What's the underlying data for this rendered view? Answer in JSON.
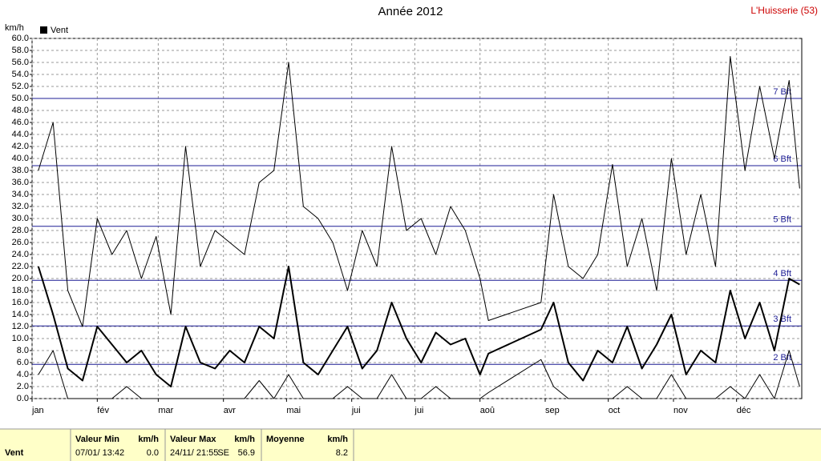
{
  "chart_data": {
    "type": "line",
    "title": "Année 2012",
    "station": "L'Huisserie (53)",
    "y_label": "km/h",
    "legend": "Vent",
    "grid": true,
    "xlim": [
      0,
      366
    ],
    "xticks": [
      {
        "value": 0,
        "label": "jan"
      },
      {
        "value": 31,
        "label": "fév"
      },
      {
        "value": 60,
        "label": "mar"
      },
      {
        "value": 91,
        "label": "avr"
      },
      {
        "value": 121,
        "label": "mai"
      },
      {
        "value": 152,
        "label": "jui"
      },
      {
        "value": 182,
        "label": "jui"
      },
      {
        "value": 213,
        "label": "aoû"
      },
      {
        "value": 244,
        "label": "sep"
      },
      {
        "value": 274,
        "label": "oct"
      },
      {
        "value": 305,
        "label": "nov"
      },
      {
        "value": 335,
        "label": "déc"
      }
    ],
    "ylim": [
      0,
      60
    ],
    "yticks": [
      {
        "value": 0,
        "label": "0.0"
      },
      {
        "value": 2,
        "label": "2.0"
      },
      {
        "value": 4,
        "label": "4.0"
      },
      {
        "value": 6,
        "label": "6.0"
      },
      {
        "value": 8,
        "label": "8.0"
      },
      {
        "value": 10,
        "label": "10.0"
      },
      {
        "value": 12,
        "label": "12.0"
      },
      {
        "value": 14,
        "label": "14.0"
      },
      {
        "value": 16,
        "label": "16.0"
      },
      {
        "value": 18,
        "label": "18.0"
      },
      {
        "value": 20,
        "label": "20.0"
      },
      {
        "value": 22,
        "label": "22.0"
      },
      {
        "value": 24,
        "label": "24.0"
      },
      {
        "value": 26,
        "label": "26.0"
      },
      {
        "value": 28,
        "label": "28.0"
      },
      {
        "value": 30,
        "label": "30.0"
      },
      {
        "value": 32,
        "label": "32.0"
      },
      {
        "value": 34,
        "label": "34.0"
      },
      {
        "value": 36,
        "label": "36.0"
      },
      {
        "value": 38,
        "label": "38.0"
      },
      {
        "value": 40,
        "label": "40.0"
      },
      {
        "value": 42,
        "label": "42.0"
      },
      {
        "value": 44,
        "label": "44.0"
      },
      {
        "value": 46,
        "label": "46.0"
      },
      {
        "value": 48,
        "label": "48.0"
      },
      {
        "value": 50,
        "label": "50.0"
      },
      {
        "value": 52,
        "label": "52.0"
      },
      {
        "value": 54,
        "label": "54.0"
      },
      {
        "value": 56,
        "label": "56.0"
      },
      {
        "value": 58,
        "label": "58.0"
      },
      {
        "value": 60,
        "label": "60.0"
      }
    ],
    "annotations": [
      {
        "value": 5.7,
        "label": "2 Bft"
      },
      {
        "value": 12.1,
        "label": "3 Bft"
      },
      {
        "value": 19.7,
        "label": "4 Bft"
      },
      {
        "value": 28.7,
        "label": "5 Bft"
      },
      {
        "value": 38.8,
        "label": "6 Bft"
      },
      {
        "value": 50,
        "label": "7 Bft"
      }
    ],
    "annotation_color": "#1c1c94",
    "x": [
      3,
      10,
      17,
      24,
      31,
      38,
      45,
      52,
      59,
      66,
      73,
      80,
      87,
      94,
      101,
      108,
      115,
      122,
      129,
      136,
      143,
      150,
      157,
      164,
      171,
      178,
      185,
      192,
      199,
      206,
      213,
      217,
      242,
      248,
      255,
      262,
      269,
      276,
      283,
      290,
      297,
      304,
      311,
      318,
      325,
      332,
      339,
      346,
      353,
      360,
      365
    ],
    "series": [
      {
        "color": "#000000",
        "width": 1,
        "values": [
          38,
          46,
          18,
          12,
          30,
          24,
          28,
          20,
          27,
          14,
          42,
          22,
          28,
          26,
          24,
          36,
          38,
          56,
          32,
          30,
          26,
          18,
          28,
          22,
          42,
          28,
          30,
          24,
          32,
          28,
          20,
          13,
          16,
          34,
          22,
          20,
          24,
          39,
          22,
          30,
          18,
          40,
          24,
          34,
          22,
          57,
          38,
          52,
          40,
          53,
          35
        ]
      },
      {
        "name": "Vent",
        "color": "#000000",
        "width": 2,
        "values": [
          22,
          14,
          5,
          3,
          12,
          9,
          6,
          8,
          4,
          2,
          12,
          6,
          5,
          8,
          6,
          12,
          10,
          22,
          6,
          4,
          8,
          12,
          5,
          8,
          16,
          10,
          6,
          11,
          9,
          10,
          4,
          7.5,
          11.5,
          16,
          6,
          3,
          8,
          6,
          12,
          5,
          9,
          14,
          4,
          8,
          6,
          18,
          10,
          16,
          8,
          20,
          19
        ]
      },
      {
        "color": "#000000",
        "width": 1,
        "values": [
          4,
          8,
          0,
          0,
          0,
          0,
          2,
          0,
          0,
          0,
          0,
          0,
          0,
          0,
          0,
          3,
          0,
          4,
          0,
          0,
          0,
          2,
          0,
          0,
          4,
          0,
          0,
          2,
          0,
          0,
          0,
          1,
          6.5,
          2,
          0,
          0,
          0,
          0,
          2,
          0,
          0,
          4,
          0,
          0,
          0,
          2,
          0,
          4,
          0,
          8,
          2
        ]
      }
    ]
  },
  "table": {
    "row_label": "Vent",
    "columns": [
      {
        "title": "Valeur Min",
        "unit": "km/h",
        "date": "07/01/ 13:42",
        "value": "0.0"
      },
      {
        "title": "Valeur Max",
        "unit": "km/h",
        "date": "24/11/ 21:55",
        "dir": "SE",
        "value": "56.9"
      },
      {
        "title": "Moyenne",
        "unit": "km/h",
        "value": "8.2"
      }
    ]
  }
}
